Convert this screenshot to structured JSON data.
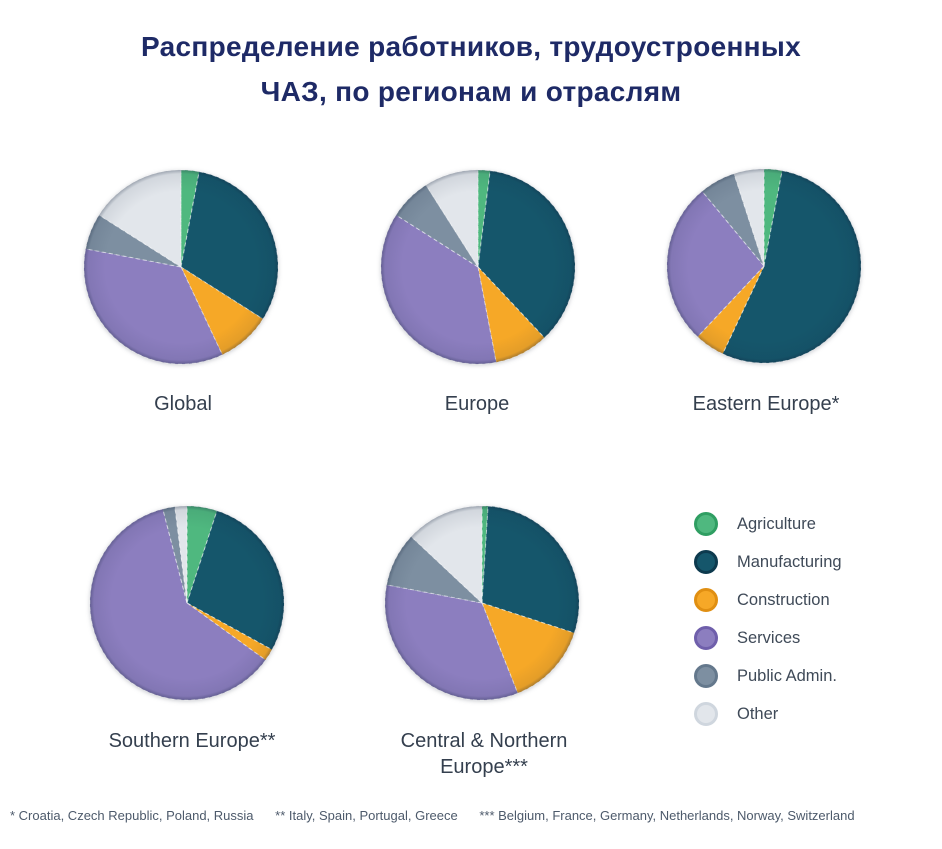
{
  "title": {
    "line1": "Распределение работников, трудоустроенных",
    "line2": "ЧАЗ, по регионам и отраслям",
    "color": "#1e2a66"
  },
  "legend": {
    "position": "bottom-right",
    "items": [
      {
        "label": "Agriculture",
        "color": "#4fb87f",
        "ring": "#2f9e62"
      },
      {
        "label": "Manufacturing",
        "color": "#15566b",
        "ring": "#0d3a4e"
      },
      {
        "label": "Construction",
        "color": "#f6a827",
        "ring": "#e08f12"
      },
      {
        "label": "Services",
        "color": "#8c7ebf",
        "ring": "#6f5fab"
      },
      {
        "label": "Public Admin.",
        "color": "#7d8fa1",
        "ring": "#64788c"
      },
      {
        "label": "Other",
        "color": "#e2e6eb",
        "ring": "#cfd6de"
      }
    ]
  },
  "chart_data": [
    {
      "type": "pie",
      "title": "Global",
      "categories": [
        "Agriculture",
        "Manufacturing",
        "Construction",
        "Services",
        "Public Admin.",
        "Other"
      ],
      "values": [
        3,
        31,
        9,
        35,
        6,
        16
      ]
    },
    {
      "type": "pie",
      "title": "Europe",
      "categories": [
        "Agriculture",
        "Manufacturing",
        "Construction",
        "Services",
        "Public Admin.",
        "Other"
      ],
      "values": [
        2,
        36,
        9,
        37,
        7,
        9
      ]
    },
    {
      "type": "pie",
      "title": "Eastern Europe*",
      "categories": [
        "Agriculture",
        "Manufacturing",
        "Construction",
        "Services",
        "Public Admin.",
        "Other"
      ],
      "values": [
        3,
        54,
        5,
        27,
        6,
        5
      ]
    },
    {
      "type": "pie",
      "title": "Southern Europe**",
      "categories": [
        "Agriculture",
        "Manufacturing",
        "Construction",
        "Services",
        "Public Admin.",
        "Other"
      ],
      "values": [
        5,
        28,
        2,
        61,
        2,
        2
      ]
    },
    {
      "type": "pie",
      "title": "Central & Northern Europe***",
      "categories": [
        "Agriculture",
        "Manufacturing",
        "Construction",
        "Services",
        "Public Admin.",
        "Other"
      ],
      "values": [
        1,
        29,
        14,
        34,
        9,
        13
      ]
    }
  ],
  "footnotes": [
    "* Croatia, Czech Republic, Poland, Russia",
    "** Italy, Spain, Portugal, Greece",
    "*** Belgium, France, Germany, Netherlands, Norway, Switzerland"
  ]
}
